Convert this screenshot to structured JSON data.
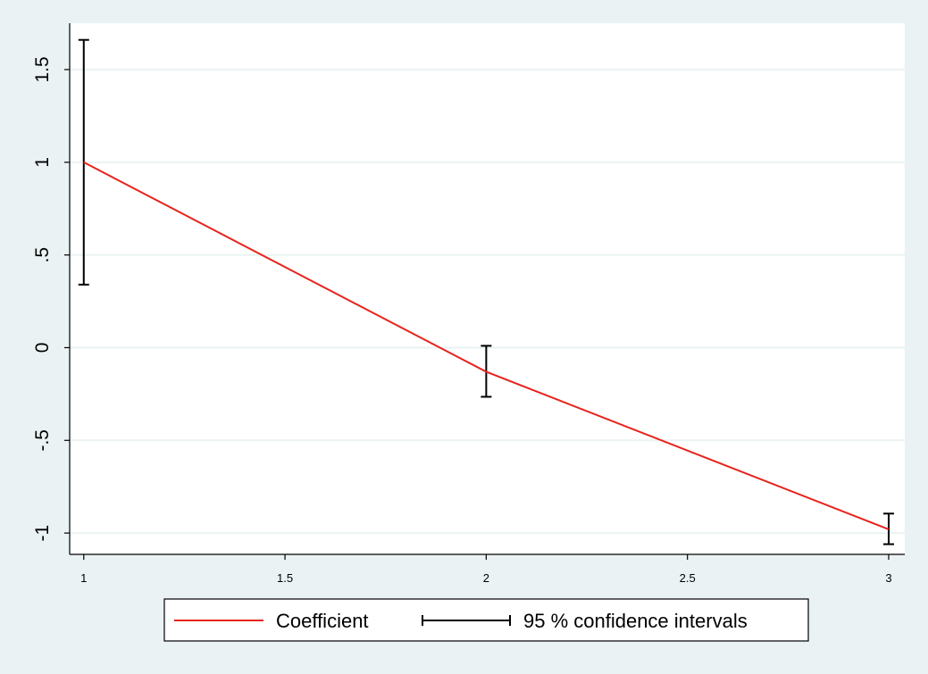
{
  "chart_data": {
    "type": "line",
    "title": "",
    "xlabel": "",
    "ylabel": "",
    "x": [
      1,
      2,
      3
    ],
    "series": [
      {
        "name": "Coefficient",
        "values": [
          1.0,
          -0.13,
          -0.98
        ],
        "color": "#e8231c"
      }
    ],
    "confidence_intervals": {
      "name": "95 % confidence intervals",
      "lower": [
        0.34,
        -0.265,
        -1.06
      ],
      "upper": [
        1.66,
        0.01,
        -0.895
      ],
      "color": "#000000"
    },
    "x_ticks": [
      1,
      1.5,
      2,
      2.5,
      3
    ],
    "x_tick_labels": [
      "1",
      "1.5",
      "2",
      "2.5",
      "3"
    ],
    "y_ticks": [
      -1,
      -0.5,
      0,
      0.5,
      1,
      1.5
    ],
    "y_tick_labels": [
      "-1",
      "-.5",
      "0",
      ".5",
      "1",
      "1.5"
    ],
    "xlim": [
      0.965,
      3.04
    ],
    "ylim": [
      -1.115,
      1.75
    ],
    "grid": true,
    "legend_position": "bottom",
    "colors": {
      "background": "#eaf2f3",
      "plot_area": "#ffffff",
      "gridline": "#eaf2f3",
      "axis": "#000000"
    }
  }
}
